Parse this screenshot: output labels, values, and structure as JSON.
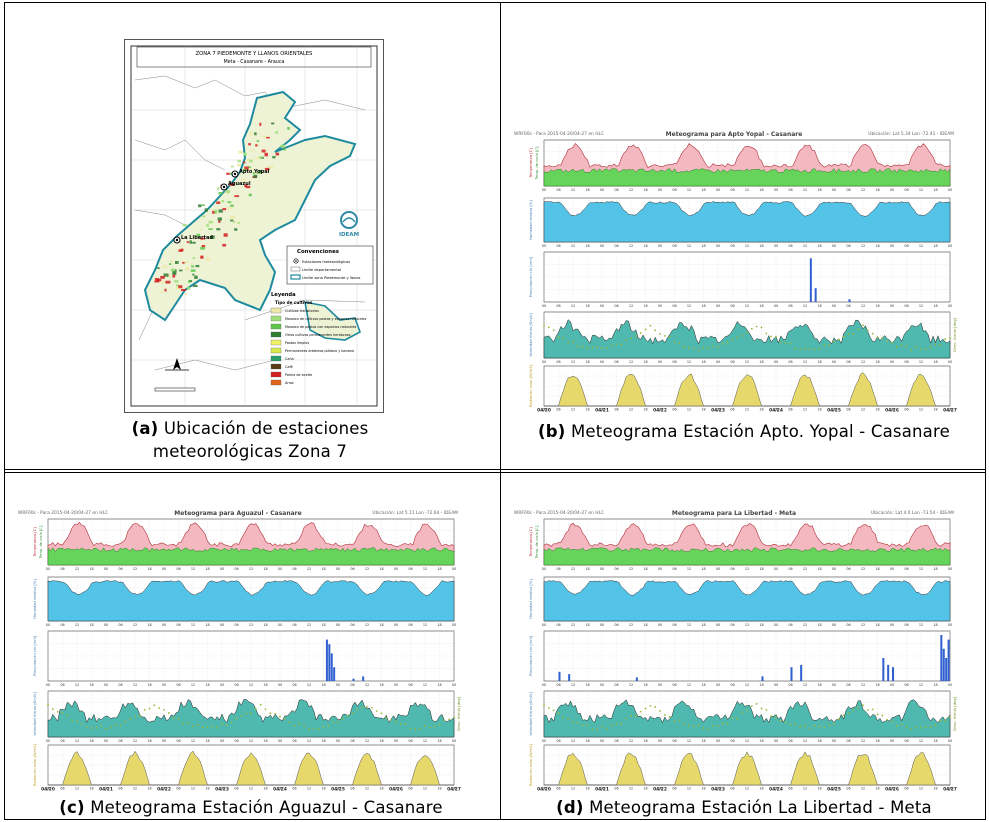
{
  "captions": {
    "a": {
      "tag": "(a)",
      "line1": "Ubicación de estaciones",
      "line2": "meteorológicas Zona 7"
    },
    "b": {
      "tag": "(b)",
      "text": "Meteograma Estación Apto. Yopal - Casanare"
    },
    "c": {
      "tag": "(c)",
      "text": "Meteograma Estación Aguazul - Casanare"
    },
    "d": {
      "tag": "(d)",
      "text": "Meteograma Estación La Libertad - Meta"
    }
  },
  "map": {
    "title": "ZONA 7 PIEDEMONTE Y LLANOS ORIENTALES",
    "subtitle": "Meta - Casanare - Arauca",
    "stations": [
      "Apto Yopal",
      "Aguazul",
      "La Libertad"
    ],
    "logo_text": "IDEAM",
    "conventions": {
      "title": "Convenciones",
      "items": [
        "Estaciones meteorológicas",
        "Límite departamental",
        "Límite zona Piedemonte y llanos"
      ]
    },
    "legend": {
      "title": "Leyenda",
      "subtitle": "Tipo de cultivos",
      "items": [
        {
          "label": "Cultivos transitorios",
          "color": "#efe7a8"
        },
        {
          "label": "Mosaico de cultivos pastos y espacios naturales",
          "color": "#9fe07a"
        },
        {
          "label": "Mosaico de pastos con espacios naturales",
          "color": "#5ec54b"
        },
        {
          "label": "Otros cultivos permanentes herbáceos",
          "color": "#2e7d32"
        },
        {
          "label": "Pastos limpios",
          "color": "#f3f06a"
        },
        {
          "label": "Permanentes arbóreos plátano y banano",
          "color": "#d6ea4a"
        },
        {
          "label": "Caña",
          "color": "#2b9e6b"
        },
        {
          "label": "Café",
          "color": "#5b3a1a"
        },
        {
          "label": "Palma de aceite",
          "color": "#d42020"
        },
        {
          "label": "Arroz",
          "color": "#e0641c"
        }
      ]
    }
  },
  "meteograms": {
    "b": {
      "header_left": "WRF00s - Para 2015-04-20/04-27 en HLC",
      "title": "Meteograma para Apto Yopal - Casanare",
      "header_right": "Ubicación: Lat 5.34 Lon -72.41 - IDEAM"
    },
    "c": {
      "header_left": "WRF00s - Para 2015-04-20/04-27 en HLC",
      "title": "Meteograma para Aguazul - Casanare",
      "header_right": "Ubicación: Lat 5.11 Lon -72.64 - IDEAM"
    },
    "d": {
      "header_left": "WRF00s - Para 2015-04-20/04-27 en HLC",
      "title": "Meteograma para La Libertad - Meta",
      "header_right": "Ubicación: Lat 4.0 Lon -73.54 - IDEAM"
    }
  },
  "meteogram_labels": {
    "temp": "Temperatura [C]",
    "dew": "Temp. de rocío [C]",
    "rh": "Humedad relativa [%]",
    "precip": "Precipitación c/h [mm]",
    "wind": "Velocidad Viento [Km/h]",
    "winddir": "Direc. Viento [deg]",
    "rad": "Radiación solar [W/m2]",
    "dates": [
      "04/20",
      "04/21",
      "04/22",
      "04/23",
      "04/24",
      "04/25",
      "04/26",
      "04/27"
    ],
    "hours": [
      "00",
      "06",
      "12",
      "18"
    ]
  },
  "colors": {
    "temp_fill": "#f4b8c0",
    "temp_line": "#b0303a",
    "dew_fill": "#66d45a",
    "rh_fill": "#54c3e8",
    "precip_bar": "#2f5fd0",
    "wind_fill": "#4fb9b0",
    "winddir_dot": "#9ab83a",
    "rad_fill": "#e6d86a",
    "label_red": "#c0262f",
    "label_blue": "#3e7ab8",
    "label_green": "#6c8e1a"
  }
}
